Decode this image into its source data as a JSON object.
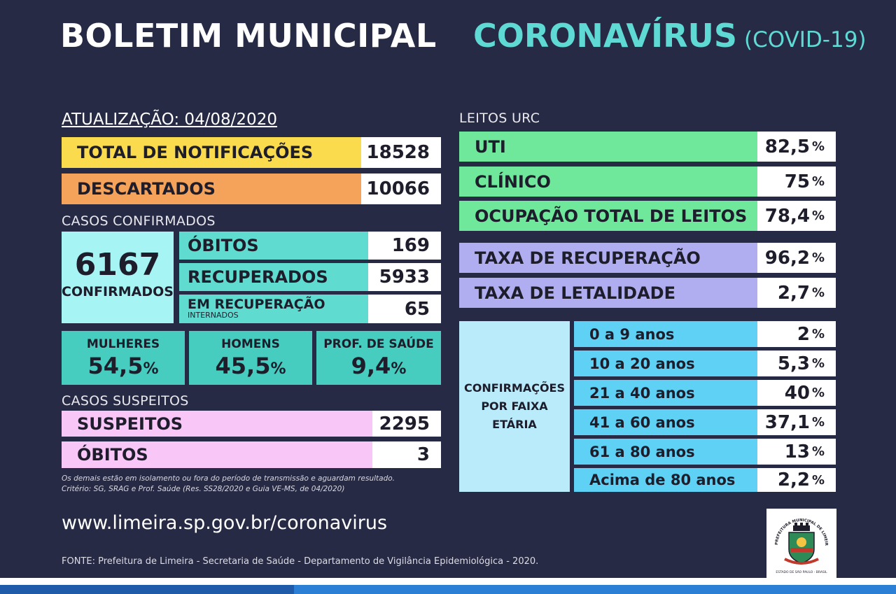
{
  "header": {
    "title_left": "BOLETIM MUNICIPAL",
    "title_right": "CORONAVÍRUS",
    "title_right_sub": "(COVID-19)"
  },
  "update": "ATUALIZAÇÃO: 04/08/2020",
  "notificacoes": {
    "label": "TOTAL DE NOTIFICAÇÕES",
    "value": "18528"
  },
  "descartados": {
    "label": "DESCARTADOS",
    "value": "10066"
  },
  "confirmados": {
    "section": "CASOS CONFIRMADOS",
    "total": "6167",
    "total_label": "CONFIRMADOS",
    "obitos": {
      "label": "ÓBITOS",
      "value": "169"
    },
    "recuperados": {
      "label": "RECUPERADOS",
      "value": "5933"
    },
    "em_recuperacao": {
      "label": "EM RECUPERAÇÃO",
      "sublabel": "INTERNADOS",
      "value": "65"
    }
  },
  "gender": {
    "mulheres": {
      "label": "MULHERES",
      "value": "54,5",
      "unit": "%"
    },
    "homens": {
      "label": "HOMENS",
      "value": "45,5",
      "unit": "%"
    },
    "prof": {
      "label": "PROF. DE SAÚDE",
      "value": "9,4",
      "unit": "%"
    }
  },
  "suspeitos": {
    "section": "CASOS SUSPEITOS",
    "suspeitos": {
      "label": "SUSPEITOS",
      "value": "2295"
    },
    "obitos": {
      "label": "ÓBITOS",
      "value": "3"
    }
  },
  "notes": {
    "line1": "Os demais estão em isolamento ou fora do período de transmissão e aguardam resultado.",
    "line2": "Critério: SG, SRAG e Prof. Saúde (Res. SS28/2020 e Guia VE-MS, de 04/2020)"
  },
  "leitos": {
    "section": "LEITOS URC",
    "uti": {
      "label": "UTI",
      "value": "82,5",
      "unit": "%"
    },
    "clinico": {
      "label": "CLÍNICO",
      "value": "75",
      "unit": "%"
    },
    "ocupacao": {
      "label": "OCUPAÇÃO TOTAL DE LEITOS",
      "value": "78,4",
      "unit": "%"
    }
  },
  "taxas": {
    "recuperacao": {
      "label": "TAXA DE RECUPERAÇÃO",
      "value": "96,2",
      "unit": "%"
    },
    "letalidade": {
      "label": "TAXA DE LETALIDADE",
      "value": "2,7",
      "unit": "%"
    }
  },
  "faixa": {
    "title_l1": "CONFIRMAÇÕES",
    "title_l2": "POR FAIXA",
    "title_l3": "ETÁRIA",
    "rows": [
      {
        "label": "0 a 9 anos",
        "value": "2",
        "unit": "%"
      },
      {
        "label": "10 a 20 anos",
        "value": "5,3",
        "unit": "%"
      },
      {
        "label": "21 a 40 anos",
        "value": "40",
        "unit": "%"
      },
      {
        "label": "41 a 60 anos",
        "value": "37,1",
        "unit": "%"
      },
      {
        "label": "61 a 80 anos",
        "value": "13",
        "unit": "%"
      },
      {
        "label": "Acima de 80 anos",
        "value": "2,2",
        "unit": "%"
      }
    ]
  },
  "footer": {
    "url": "www.limeira.sp.gov.br/coronavirus",
    "fonte": "FONTE: Prefeitura de Limeira - Secretaria de Saúde - Departamento de Vigilância Epidemiológica - 2020.",
    "logo_text_top": "PREFEITURA MUNICIPAL DE LIMEIRA",
    "logo_text_bottom": "ESTADO DE SÃO PAULO - BRASIL"
  }
}
